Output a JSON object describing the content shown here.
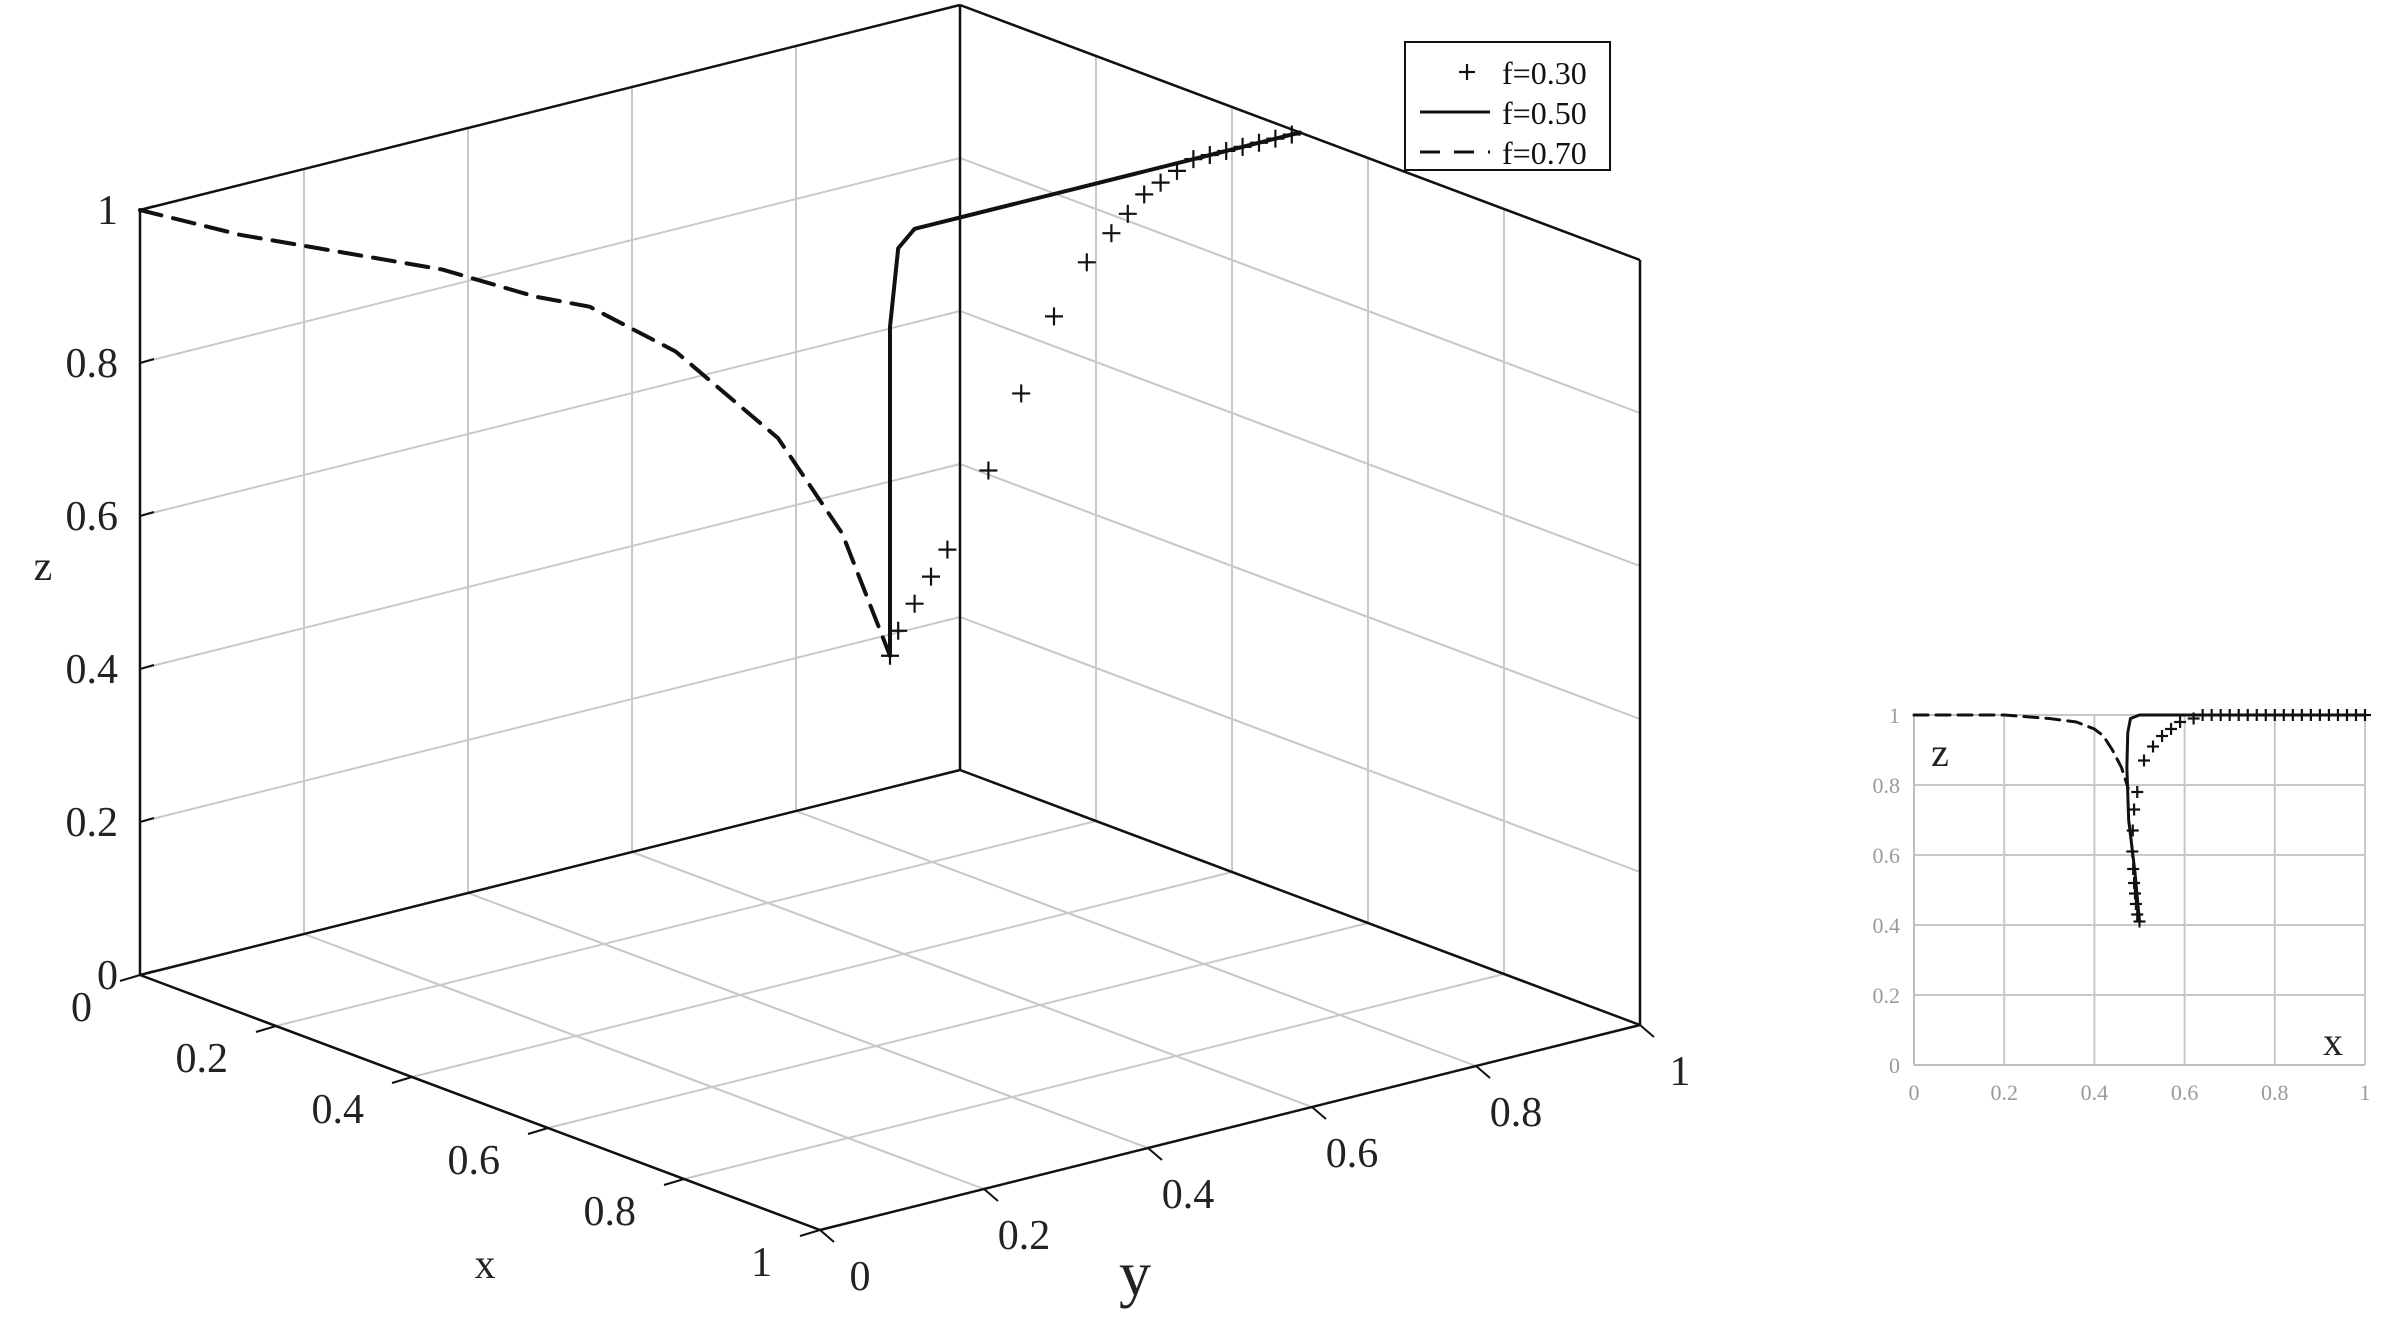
{
  "chart_data": [
    {
      "type": "line",
      "projection": "3d",
      "title": "",
      "xlabel": "x",
      "ylabel": "y",
      "zlabel": "z",
      "xlim": [
        0,
        1
      ],
      "ylim": [
        0,
        1
      ],
      "zlim": [
        0,
        1
      ],
      "xticks": [
        "0",
        "0.2",
        "0.4",
        "0.6",
        "0.8",
        "1"
      ],
      "yticks": [
        "0",
        "0.2",
        "0.4",
        "0.6",
        "0.8",
        "1"
      ],
      "zticks": [
        "0",
        "0.2",
        "0.4",
        "0.6",
        "0.8",
        "1"
      ],
      "grid": true,
      "legend_position": "top-right",
      "series": [
        {
          "name": "f=0.30",
          "style": "plus-markers",
          "points": [
            [
              0.5,
              0.5,
              0.45
            ],
            [
              0.5,
              0.51,
              0.48
            ],
            [
              0.5,
              0.53,
              0.51
            ],
            [
              0.5,
              0.55,
              0.54
            ],
            [
              0.5,
              0.57,
              0.57
            ],
            [
              0.5,
              0.62,
              0.66
            ],
            [
              0.5,
              0.66,
              0.75
            ],
            [
              0.5,
              0.7,
              0.84
            ],
            [
              0.5,
              0.74,
              0.9
            ],
            [
              0.5,
              0.77,
              0.93
            ],
            [
              0.5,
              0.79,
              0.95
            ],
            [
              0.5,
              0.81,
              0.97
            ],
            [
              0.5,
              0.83,
              0.98
            ],
            [
              0.5,
              0.85,
              0.99
            ],
            [
              0.5,
              0.87,
              1.0
            ],
            [
              0.5,
              0.89,
              1.0
            ],
            [
              0.5,
              0.91,
              1.0
            ],
            [
              0.5,
              0.93,
              1.0
            ],
            [
              0.5,
              0.95,
              1.0
            ],
            [
              0.5,
              0.97,
              1.0
            ],
            [
              0.5,
              0.99,
              1.0
            ]
          ]
        },
        {
          "name": "f=0.50",
          "style": "solid",
          "points": [
            [
              0.5,
              0.5,
              0.45
            ],
            [
              0.5,
              0.5,
              0.6
            ],
            [
              0.5,
              0.5,
              0.75
            ],
            [
              0.5,
              0.5,
              0.88
            ],
            [
              0.5,
              0.51,
              0.98
            ],
            [
              0.5,
              0.53,
              1.0
            ],
            [
              0.5,
              0.56,
              1.0
            ],
            [
              0.5,
              0.6,
              1.0
            ],
            [
              0.5,
              0.65,
              1.0
            ],
            [
              0.5,
              0.72,
              1.0
            ],
            [
              0.5,
              0.8,
              1.0
            ],
            [
              0.5,
              0.9,
              1.0
            ],
            [
              0.5,
              1.0,
              1.0
            ]
          ]
        },
        {
          "name": "f=0.70",
          "style": "dashed",
          "points": [
            [
              0.0,
              0.0,
              1.0
            ],
            [
              0.1,
              0.04,
              0.99
            ],
            [
              0.2,
              0.08,
              0.99
            ],
            [
              0.3,
              0.12,
              0.99
            ],
            [
              0.4,
              0.15,
              0.98
            ],
            [
              0.42,
              0.2,
              0.96
            ],
            [
              0.45,
              0.28,
              0.89
            ],
            [
              0.48,
              0.38,
              0.76
            ],
            [
              0.49,
              0.45,
              0.62
            ],
            [
              0.5,
              0.5,
              0.45
            ]
          ]
        }
      ]
    },
    {
      "type": "line",
      "projection": "2d",
      "title": "",
      "xlabel": "x",
      "ylabel": "z",
      "xlim": [
        0,
        1
      ],
      "ylim": [
        0,
        1
      ],
      "xticks": [
        "0",
        "0.2",
        "0.4",
        "0.6",
        "0.8",
        "1"
      ],
      "yticks": [
        "0",
        "0.2",
        "0.4",
        "0.6",
        "0.8",
        "1"
      ],
      "grid": true,
      "series": [
        {
          "style": "plus-markers",
          "points": [
            [
              0.5,
              0.41
            ],
            [
              0.495,
              0.43
            ],
            [
              0.492,
              0.46
            ],
            [
              0.49,
              0.49
            ],
            [
              0.488,
              0.52
            ],
            [
              0.486,
              0.56
            ],
            [
              0.484,
              0.61
            ],
            [
              0.485,
              0.67
            ],
            [
              0.488,
              0.73
            ],
            [
              0.495,
              0.78
            ],
            [
              0.51,
              0.87
            ],
            [
              0.53,
              0.91
            ],
            [
              0.55,
              0.94
            ],
            [
              0.57,
              0.96
            ],
            [
              0.59,
              0.98
            ],
            [
              0.62,
              0.99
            ],
            [
              0.64,
              1.0
            ],
            [
              0.66,
              1.0
            ],
            [
              0.68,
              1.0
            ],
            [
              0.7,
              1.0
            ],
            [
              0.72,
              1.0
            ],
            [
              0.74,
              1.0
            ],
            [
              0.76,
              1.0
            ],
            [
              0.78,
              1.0
            ],
            [
              0.8,
              1.0
            ],
            [
              0.82,
              1.0
            ],
            [
              0.84,
              1.0
            ],
            [
              0.86,
              1.0
            ],
            [
              0.88,
              1.0
            ],
            [
              0.9,
              1.0
            ],
            [
              0.92,
              1.0
            ],
            [
              0.94,
              1.0
            ],
            [
              0.96,
              1.0
            ],
            [
              0.98,
              1.0
            ],
            [
              1.0,
              1.0
            ]
          ]
        },
        {
          "style": "solid",
          "points": [
            [
              0.5,
              0.41
            ],
            [
              0.49,
              0.55
            ],
            [
              0.476,
              0.7
            ],
            [
              0.472,
              0.85
            ],
            [
              0.474,
              0.95
            ],
            [
              0.48,
              0.99
            ],
            [
              0.5,
              1.0
            ],
            [
              0.6,
              1.0
            ],
            [
              0.8,
              1.0
            ],
            [
              1.0,
              1.0
            ]
          ]
        },
        {
          "style": "dashed",
          "points": [
            [
              0.0,
              1.0
            ],
            [
              0.1,
              1.0
            ],
            [
              0.2,
              1.0
            ],
            [
              0.3,
              0.99
            ],
            [
              0.36,
              0.98
            ],
            [
              0.4,
              0.96
            ],
            [
              0.42,
              0.94
            ],
            [
              0.44,
              0.9
            ],
            [
              0.46,
              0.85
            ],
            [
              0.475,
              0.79
            ]
          ]
        }
      ]
    }
  ]
}
